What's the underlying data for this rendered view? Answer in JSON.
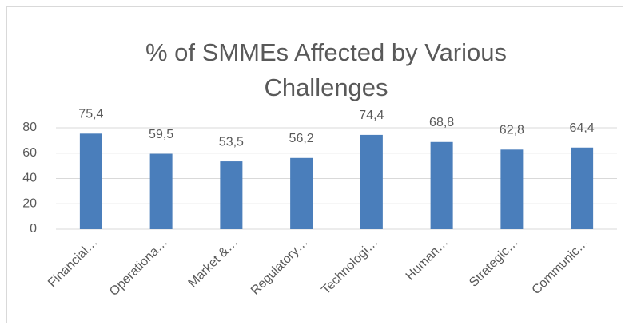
{
  "chart_data": {
    "type": "bar",
    "title": "% of SMMEs Affected by Various Challenges",
    "categories": [
      "Financial…",
      "Operationa…",
      "Market &…",
      "Regulatory…",
      "Technologi…",
      "Human…",
      "Strategic…",
      "Communic…"
    ],
    "values": [
      75.4,
      59.5,
      53.5,
      56.2,
      74.4,
      68.8,
      62.8,
      64.4
    ],
    "value_labels": [
      "75,4",
      "59,5",
      "53,5",
      "56,2",
      "74,4",
      "68,8",
      "62,8",
      "64,4"
    ],
    "color": "#4a7ebb",
    "ylim": [
      0,
      80
    ],
    "yticks": [
      0,
      20,
      40,
      60,
      80
    ],
    "grid": true
  }
}
